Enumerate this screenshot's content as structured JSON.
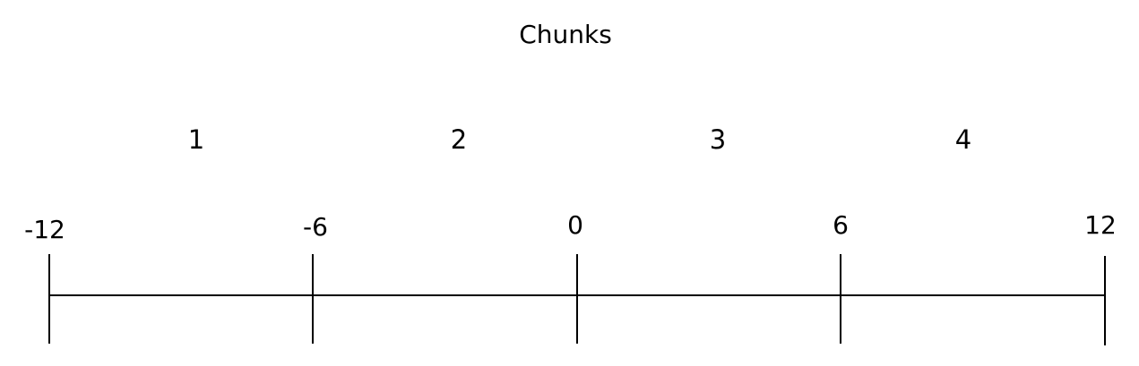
{
  "title": "Chunks",
  "chunks": [
    "1",
    "2",
    "3",
    "4"
  ],
  "ticks": [
    "-12",
    "-6",
    "0",
    "6",
    "12"
  ],
  "colors": {
    "line": "#000000",
    "text": "#000000",
    "background": "#ffffff"
  }
}
